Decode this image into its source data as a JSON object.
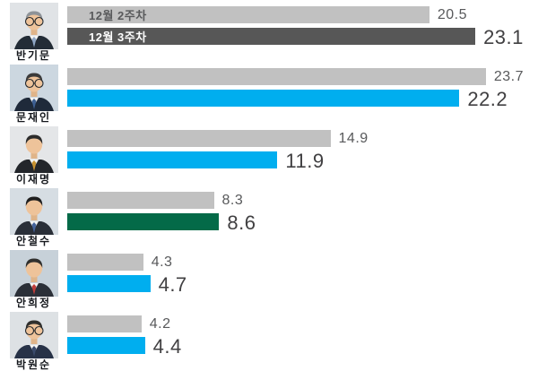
{
  "chart_data": {
    "type": "bar",
    "orientation": "horizontal",
    "title": "",
    "categories": [
      "반기문",
      "문재인",
      "이재명",
      "안철수",
      "안희정",
      "박원순"
    ],
    "series": [
      {
        "name": "12월 2주차",
        "values": [
          20.5,
          23.7,
          14.9,
          8.3,
          4.3,
          4.2
        ]
      },
      {
        "name": "12월 3주차",
        "values": [
          23.1,
          22.2,
          11.9,
          8.6,
          4.7,
          4.4
        ]
      }
    ],
    "xlim": [
      0,
      26.6
    ],
    "grid": false,
    "legend_position": "inside-first-row-bars",
    "value_labels": "end-of-bar"
  },
  "legend": {
    "week2_label": "12월 2주차",
    "week3_label": "12월 3주차"
  },
  "colors": {
    "week2_bar": "#c1c1c1",
    "week3_bar_default": "#00aeef",
    "week3_bar_ban_ki_moon": "#575757",
    "week3_bar_ahn_cheol_soo": "#046a48",
    "value_small_text": "#58595b",
    "value_large_text": "#414042",
    "legend_text_on_gray": "#58595b",
    "legend_text_on_dark": "#ffffff",
    "name_text": "#15181d"
  },
  "rows": [
    {
      "name": "반기문",
      "week2": "20.5",
      "week3": "23.1",
      "week3_color": "#575757",
      "photo": {
        "bg": "#e0e3e6",
        "hair": "#8e9398",
        "suit": "#232c36",
        "tie": "#8fa6c4",
        "glasses": true
      }
    },
    {
      "name": "문재인",
      "week2": "23.7",
      "week3": "22.2",
      "week3_color": "#00aeef",
      "photo": {
        "bg": "#ccd7e0",
        "hair": "#3b3b3b",
        "suit": "#1f2a3a",
        "tie": "#3d5f92",
        "glasses": true
      }
    },
    {
      "name": "이재명",
      "week2": "14.9",
      "week3": "11.9",
      "week3_color": "#00aeef",
      "photo": {
        "bg": "#e4e6e8",
        "hair": "#2c2c2c",
        "suit": "#23262b",
        "tie": "#c8922f",
        "glasses": false
      }
    },
    {
      "name": "안철수",
      "week2": "8.3",
      "week3": "8.6",
      "week3_color": "#046a48",
      "photo": {
        "bg": "#d6dde3",
        "hair": "#1f1f1f",
        "suit": "#2a2f38",
        "tie": "#44639c",
        "glasses": false
      }
    },
    {
      "name": "안희정",
      "week2": "4.3",
      "week3": "4.7",
      "week3_color": "#00aeef",
      "photo": {
        "bg": "#c7d1d9",
        "hair": "#30302e",
        "suit": "#2b3038",
        "tie": "#bf3d3a",
        "glasses": false
      }
    },
    {
      "name": "박원순",
      "week2": "4.2",
      "week3": "4.4",
      "week3_color": "#00aeef",
      "photo": {
        "bg": "#dde1e4",
        "hair": "#30302e",
        "suit": "#273247",
        "tie": "#3a4a6b",
        "glasses": true
      }
    }
  ]
}
